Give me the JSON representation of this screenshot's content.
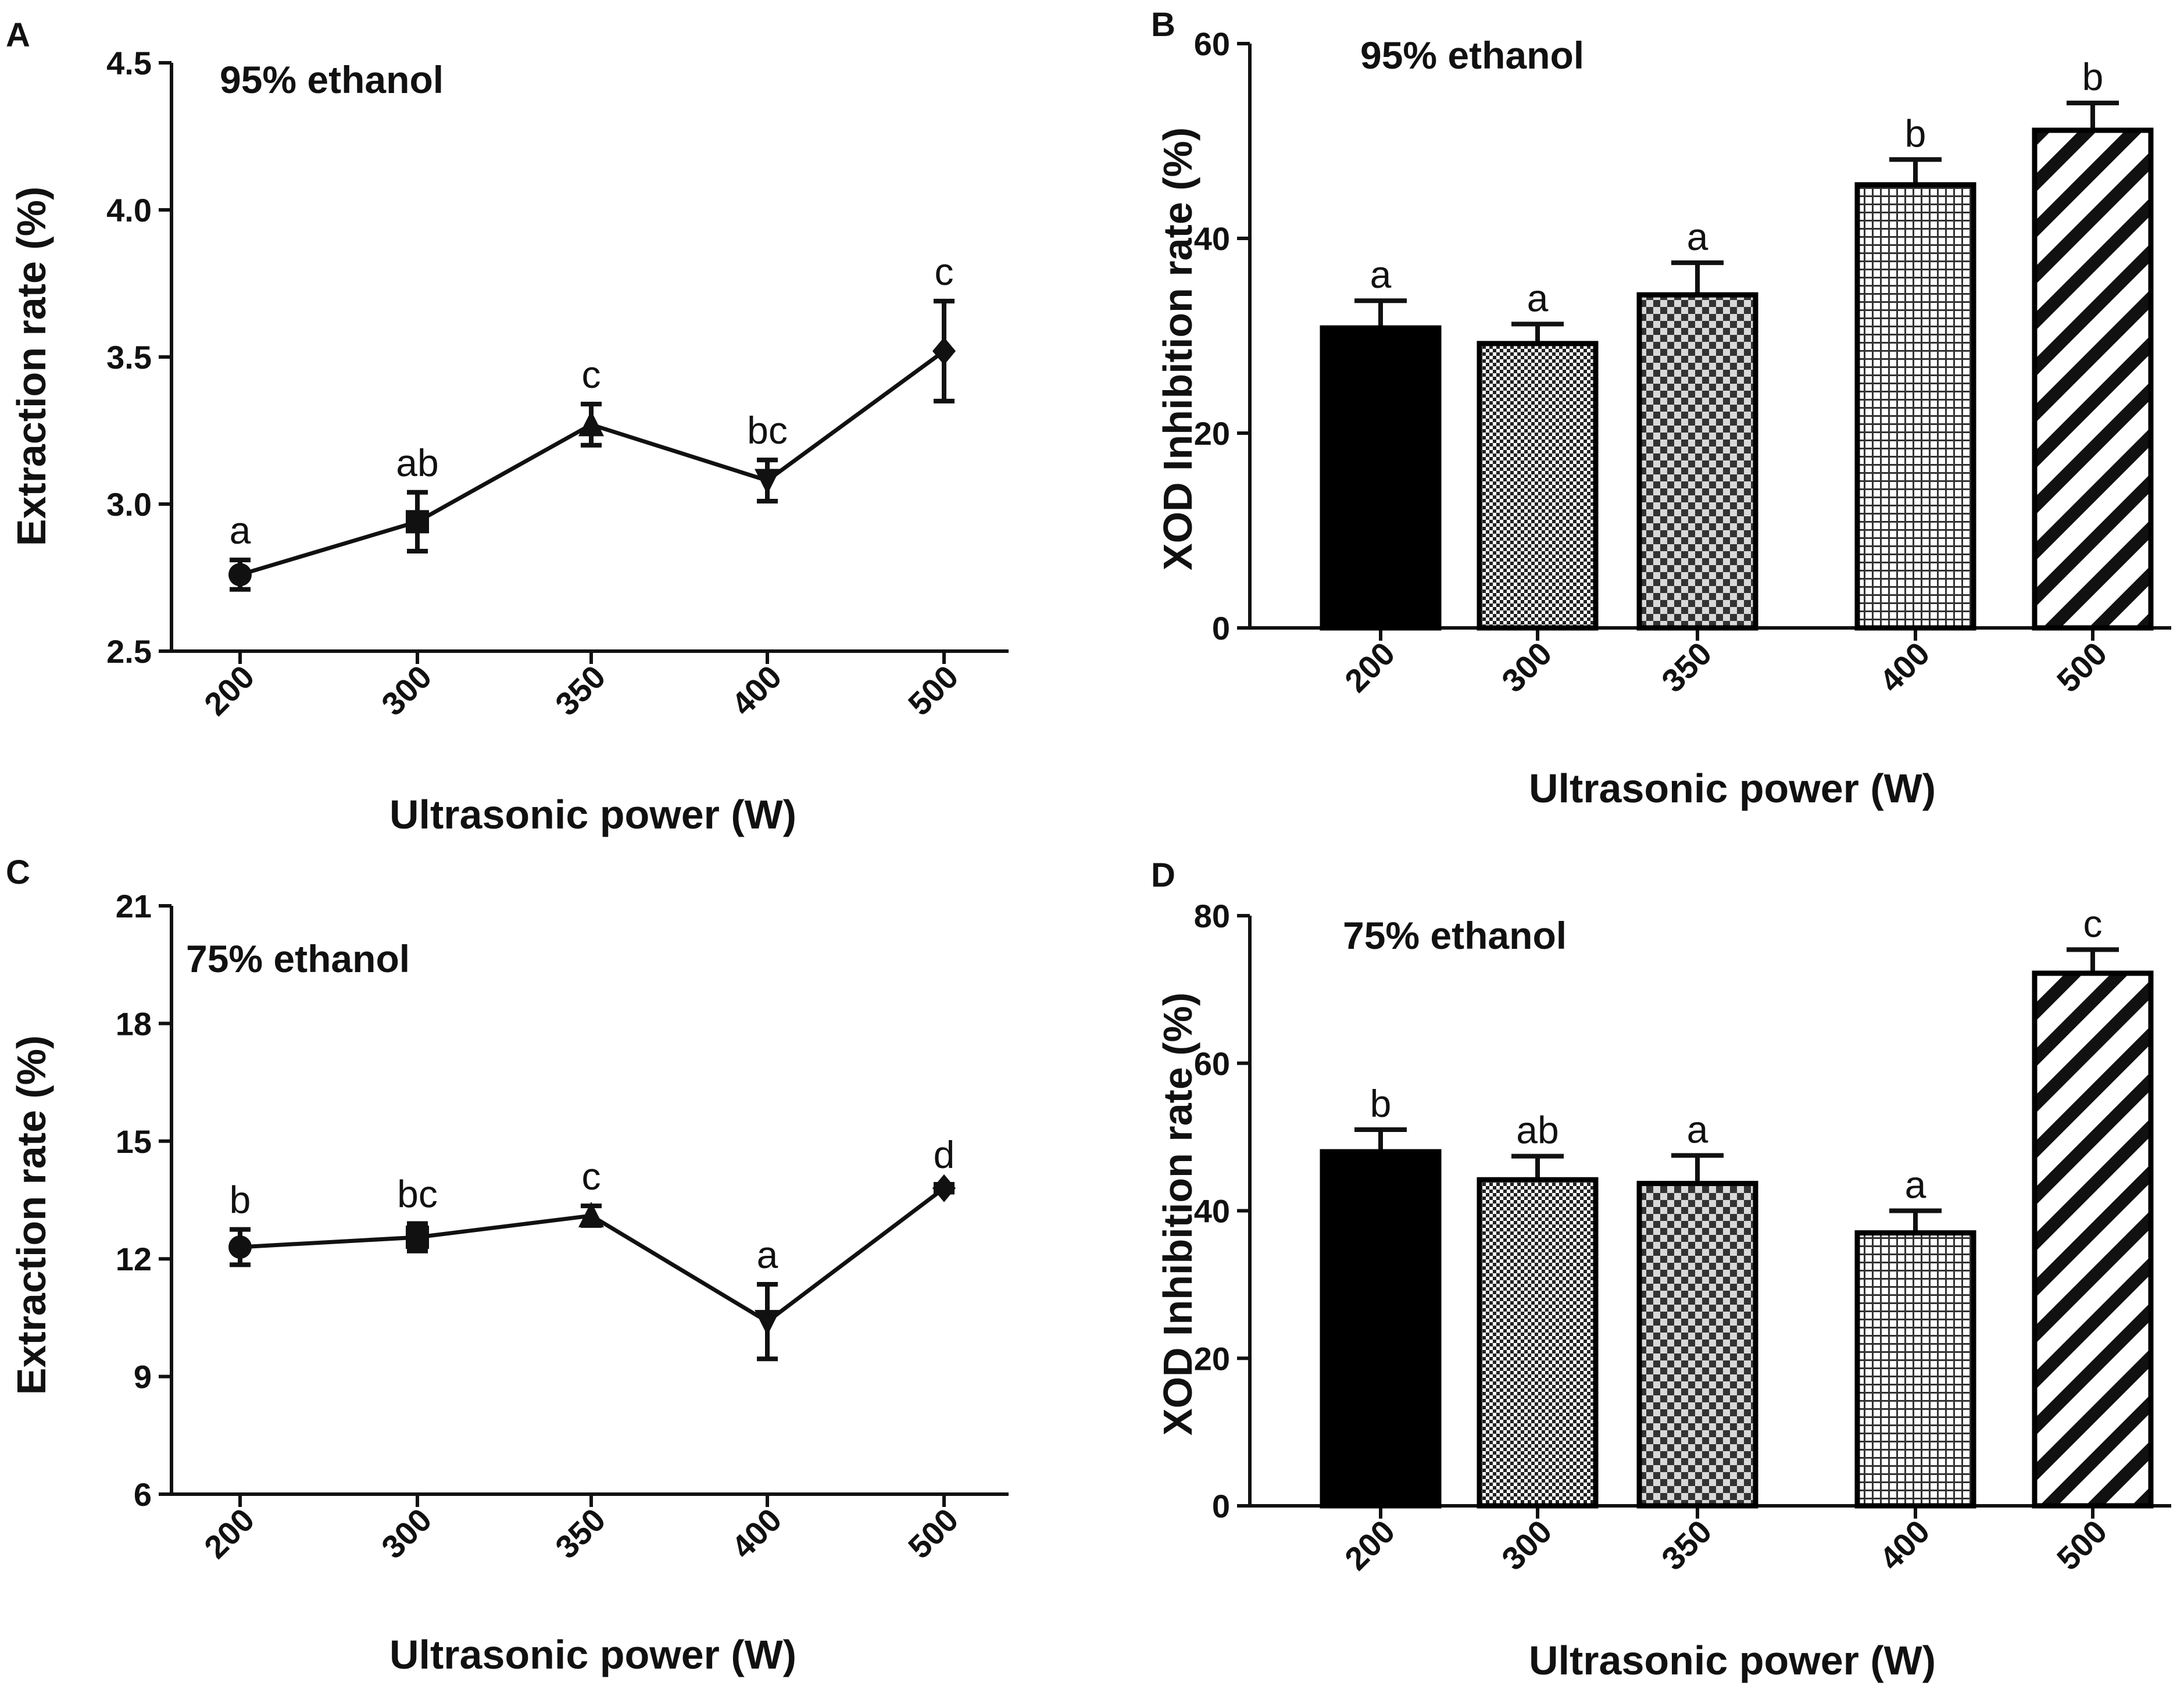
{
  "chart_data": [
    {
      "panel": "A",
      "type": "line",
      "annotation": "95% ethanol",
      "xlabel": "Ultrasonic power (W)",
      "ylabel": "Extraction rate (%)",
      "categories": [
        "200",
        "300",
        "350",
        "400",
        "500"
      ],
      "values": [
        2.76,
        2.94,
        3.27,
        3.08,
        3.52
      ],
      "errors": [
        0.05,
        0.1,
        0.07,
        0.07,
        0.17
      ],
      "letters": [
        "a",
        "ab",
        "c",
        "bc",
        "c"
      ],
      "ylim": [
        2.5,
        4.5
      ],
      "yticks": [
        2.5,
        3.0,
        3.5,
        4.0,
        4.5
      ],
      "ytick_labels": [
        "2.5",
        "3.0",
        "3.5",
        "4.0",
        "4.5"
      ],
      "markers": [
        "circle",
        "square",
        "triangle",
        "down-triangle",
        "diamond"
      ]
    },
    {
      "panel": "B",
      "type": "bar",
      "annotation": "95% ethanol",
      "xlabel": "Ultrasonic power (W)",
      "ylabel": "XOD Inhibition rate (%)",
      "categories": [
        "200",
        "300",
        "350",
        "400",
        "500"
      ],
      "values": [
        30.8,
        29.2,
        34.2,
        45.5,
        51.1
      ],
      "errors": [
        2.8,
        2.0,
        3.3,
        2.6,
        2.8
      ],
      "letters": [
        "a",
        "a",
        "a",
        "b",
        "b"
      ],
      "ylim": [
        0,
        60
      ],
      "yticks": [
        0,
        20,
        40,
        60
      ],
      "ytick_labels": [
        "0",
        "20",
        "40",
        "60"
      ],
      "fills": [
        "solid",
        "fine-check",
        "coarse-check",
        "grid",
        "diagonal"
      ]
    },
    {
      "panel": "C",
      "type": "line",
      "annotation": "75% ethanol",
      "xlabel": "Ultrasonic power (W)",
      "ylabel": "Extraction rate (%)",
      "categories": [
        "200",
        "300",
        "350",
        "400",
        "500"
      ],
      "values": [
        12.3,
        12.55,
        13.1,
        10.4,
        13.8
      ],
      "errors": [
        0.45,
        0.35,
        0.25,
        0.95,
        0.1
      ],
      "letters": [
        "b",
        "bc",
        "c",
        "a",
        "d"
      ],
      "ylim": [
        6,
        21
      ],
      "yticks": [
        6,
        9,
        12,
        15,
        18,
        21
      ],
      "ytick_labels": [
        "6",
        "9",
        "12",
        "15",
        "18",
        "21"
      ],
      "markers": [
        "circle",
        "square",
        "triangle",
        "down-triangle",
        "diamond"
      ]
    },
    {
      "panel": "D",
      "type": "bar",
      "annotation": "75% ethanol",
      "xlabel": "Ultrasonic power (W)",
      "ylabel": "XOD Inhibition rate (%)",
      "categories": [
        "200",
        "300",
        "350",
        "400",
        "500"
      ],
      "values": [
        48.0,
        44.2,
        43.7,
        37.0,
        72.2
      ],
      "errors": [
        3.0,
        3.2,
        3.8,
        3.0,
        3.2
      ],
      "letters": [
        "b",
        "ab",
        "a",
        "a",
        "c"
      ],
      "ylim": [
        0,
        80
      ],
      "yticks": [
        0,
        20,
        40,
        60,
        80
      ],
      "ytick_labels": [
        "0",
        "20",
        "40",
        "60",
        "80"
      ],
      "fills": [
        "solid",
        "fine-check",
        "coarse-check",
        "grid",
        "diagonal"
      ]
    }
  ]
}
